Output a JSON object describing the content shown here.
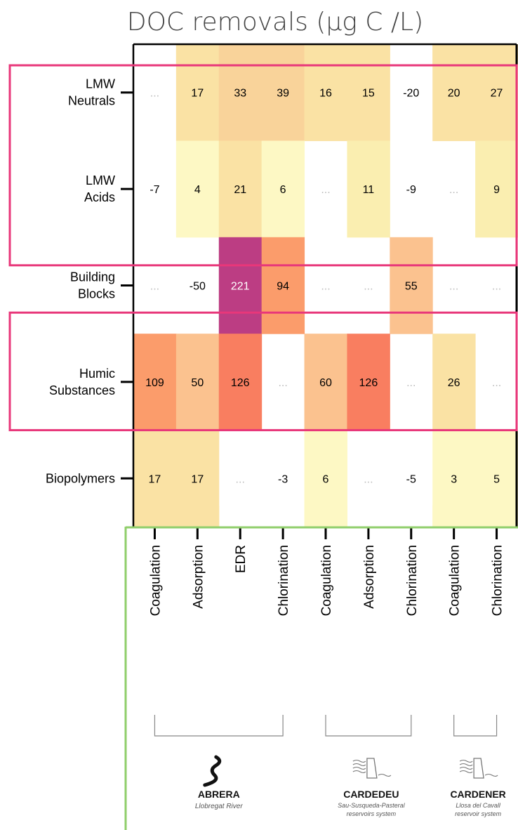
{
  "chart_data": {
    "type": "heatmap",
    "title": "DOC removals (µg C /L)",
    "rows": [
      {
        "line1": "LMW",
        "line2": "Neutrals"
      },
      {
        "line1": "LMW",
        "line2": "Acids"
      },
      {
        "line1": "Building",
        "line2": "Blocks"
      },
      {
        "line1": "Humic",
        "line2": "Substances"
      },
      {
        "line1": "Biopolymers",
        "line2": ""
      }
    ],
    "columns": [
      "Coagulation",
      "Adsorption",
      "EDR",
      "Chlorination",
      "Coagulation",
      "Adsorption",
      "Chlorination",
      "Coagulation",
      "Chlorination"
    ],
    "na_label": "...",
    "values": [
      [
        null,
        17,
        33,
        39,
        16,
        15,
        -20,
        20,
        27
      ],
      [
        -7,
        4,
        21,
        6,
        null,
        11,
        -9,
        null,
        9
      ],
      [
        null,
        -50,
        221,
        94,
        null,
        null,
        55,
        null,
        null
      ],
      [
        109,
        50,
        126,
        null,
        60,
        126,
        null,
        26,
        null
      ],
      [
        17,
        17,
        null,
        -3,
        6,
        null,
        -5,
        3,
        5
      ]
    ],
    "colors": {
      "light_yellow": "#fdf8c4",
      "yellow": "#faeeb0",
      "cream": "#fae2a4",
      "tan": "#f9d39a",
      "peach": "#fbc28f",
      "orange": "#fb9c6b",
      "coral": "#f97e60",
      "magenta": "#bc3d83",
      "highlight_box": "#e8377a",
      "green_line": "#8fce6a",
      "text": "#000000",
      "na_text": "#bbbbbb"
    },
    "groups": [
      {
        "name": "ABRERA",
        "subtitle": "Llobregat River",
        "icon": "river-icon"
      },
      {
        "name": "CARDEDEU",
        "subtitle": "Sau-Susqueda-Pasteral reservoirs system",
        "icon": "dam-icon"
      },
      {
        "name": "CARDENER",
        "subtitle": "Llosa del Cavall reservoir system",
        "icon": "dam-icon"
      }
    ]
  }
}
